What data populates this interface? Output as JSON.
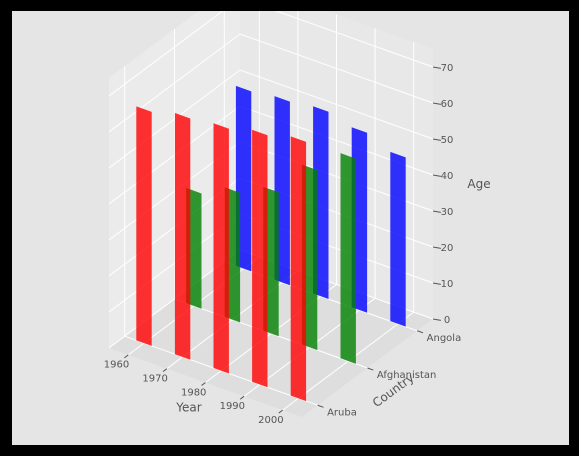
{
  "chart_data": {
    "type": "bar",
    "subtype": "3d-bar",
    "title": "",
    "xlabel": "Year",
    "ylabel": "Country",
    "zlabel": "Age",
    "x_ticks": [
      "1960",
      "1970",
      "1980",
      "1990",
      "2000"
    ],
    "y_ticks": [
      "Aruba",
      "Afghanistan",
      "Angola"
    ],
    "z_ticks": [
      "0",
      "10",
      "20",
      "30",
      "40",
      "50",
      "60",
      "70"
    ],
    "zlim": [
      0,
      75
    ],
    "grid": true,
    "series": [
      {
        "name": "Aruba",
        "color": "#ff0000",
        "x": [
          1960,
          1970,
          1980,
          1990,
          2000
        ],
        "values": [
          65,
          67,
          68,
          70,
          72
        ]
      },
      {
        "name": "Afghanistan",
        "color": "#008000",
        "x": [
          1960,
          1970,
          1980,
          1990,
          2000
        ],
        "values": [
          32,
          36,
          40,
          50,
          57
        ]
      },
      {
        "name": "Angola",
        "color": "#0000ff",
        "x": [
          1960,
          1970,
          1980,
          1990,
          2000
        ],
        "values": [
          50,
          51,
          52,
          50,
          47
        ]
      }
    ]
  }
}
